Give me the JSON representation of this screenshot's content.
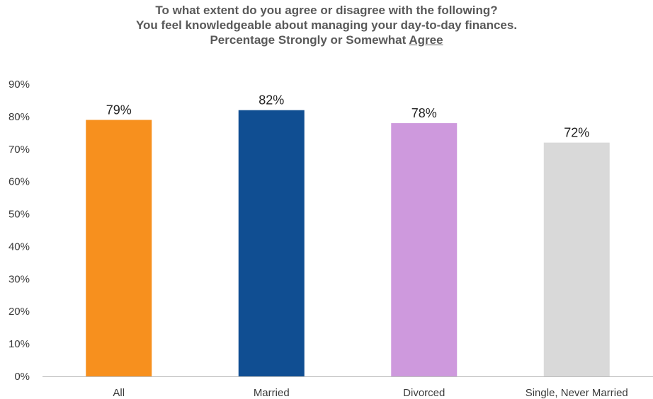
{
  "chart_data": {
    "type": "bar",
    "title_lines": [
      "To what extent do you agree or disagree with the following?",
      "You feel knowledgeable about managing your day-to-day finances."
    ],
    "subtitle_prefix": "Percentage Strongly or Somewhat ",
    "subtitle_emphasis": "Agree",
    "categories": [
      "All",
      "Married",
      "Divorced",
      "Single, Never Married"
    ],
    "values": [
      79,
      82,
      78,
      72
    ],
    "data_labels": [
      "79%",
      "82%",
      "78%",
      "72%"
    ],
    "colors": [
      "#F7901E",
      "#104E92",
      "#CE99DD",
      "#D9D9D9"
    ],
    "yticks": [
      "0%",
      "10%",
      "20%",
      "30%",
      "40%",
      "50%",
      "60%",
      "70%",
      "80%",
      "90%"
    ],
    "ylim": [
      0,
      90
    ],
    "xlabel": "",
    "ylabel": "",
    "grid": false,
    "legend": "none"
  }
}
